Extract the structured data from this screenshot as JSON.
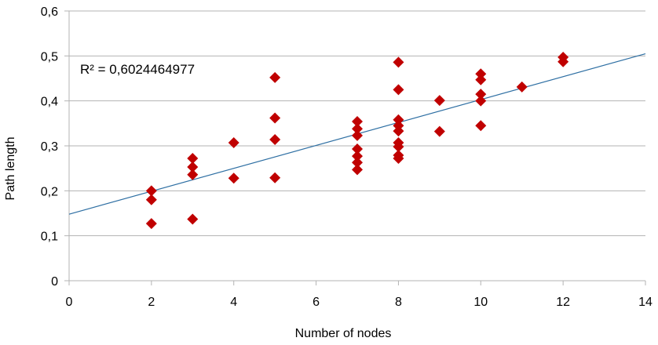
{
  "chart_data": {
    "type": "scatter",
    "xlabel": "Number of nodes",
    "ylabel": "Path length",
    "xlim": [
      0,
      14
    ],
    "ylim": [
      0,
      0.6
    ],
    "xticks": [
      0,
      2,
      4,
      6,
      8,
      10,
      12,
      14
    ],
    "yticks": [
      0,
      0.1,
      0.2,
      0.3,
      0.4,
      0.5,
      0.6
    ],
    "xtick_labels": [
      "0",
      "2",
      "4",
      "6",
      "8",
      "10",
      "12",
      "14"
    ],
    "ytick_labels": [
      "0",
      "0,1",
      "0,2",
      "0,3",
      "0,4",
      "0,5",
      "0,6"
    ],
    "grid": "horizontal",
    "annotation": "R² = 0,6024464977",
    "trendline": {
      "type": "linear",
      "slope": 0.02549,
      "intercept": 0.148,
      "x_range": [
        0,
        14
      ]
    },
    "series": [
      {
        "marker": "diamond",
        "color": "#c00000",
        "points": [
          [
            2,
            0.2
          ],
          [
            2,
            0.18
          ],
          [
            2,
            0.127
          ],
          [
            3,
            0.272
          ],
          [
            3,
            0.253
          ],
          [
            3,
            0.236
          ],
          [
            3,
            0.137
          ],
          [
            4,
            0.307
          ],
          [
            4,
            0.228
          ],
          [
            5,
            0.452
          ],
          [
            5,
            0.362
          ],
          [
            5,
            0.314
          ],
          [
            5,
            0.229
          ],
          [
            7,
            0.354
          ],
          [
            7,
            0.338
          ],
          [
            7,
            0.323
          ],
          [
            7,
            0.293
          ],
          [
            7,
            0.277
          ],
          [
            7,
            0.263
          ],
          [
            7,
            0.247
          ],
          [
            8,
            0.486
          ],
          [
            8,
            0.425
          ],
          [
            8,
            0.358
          ],
          [
            8,
            0.345
          ],
          [
            8,
            0.333
          ],
          [
            8,
            0.307
          ],
          [
            8,
            0.298
          ],
          [
            8,
            0.279
          ],
          [
            8,
            0.272
          ],
          [
            9,
            0.401
          ],
          [
            9,
            0.332
          ],
          [
            10,
            0.46
          ],
          [
            10,
            0.447
          ],
          [
            10,
            0.415
          ],
          [
            10,
            0.4
          ],
          [
            10,
            0.345
          ],
          [
            11,
            0.431
          ],
          [
            12,
            0.497
          ],
          [
            12,
            0.487
          ]
        ]
      }
    ]
  },
  "colors": {
    "marker": "#c00000",
    "trendline": "#2e6fa3",
    "gridline": "#b3b3b3",
    "axis": "#b3b3b3"
  }
}
